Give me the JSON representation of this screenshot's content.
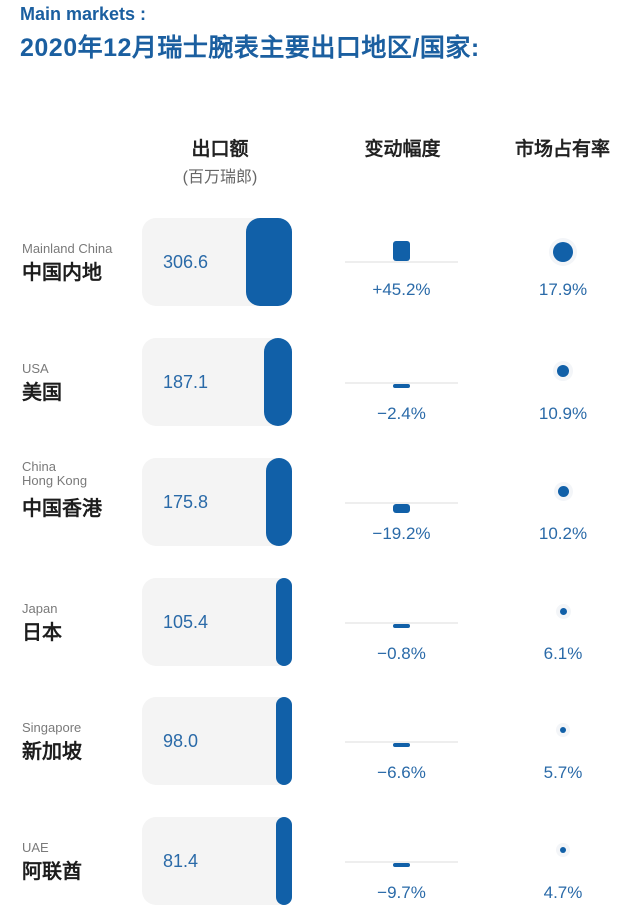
{
  "header": {
    "subtitle": "Main markets :",
    "title": "2020年12月瑞士腕表主要出口地区/国家:"
  },
  "columns": {
    "export": "出口额",
    "export_unit": "(百万瑞郎)",
    "change": "变动幅度",
    "share": "市场占有率"
  },
  "colors": {
    "accent": "#1160a8",
    "title": "#1b5fa0",
    "card_bg": "#f4f4f4",
    "value_text": "#2a6aa8"
  },
  "rows": [
    {
      "en": "Mainland China",
      "zh": "中国内地",
      "export": "306.6",
      "change": "+45.2%",
      "share": "17.9%"
    },
    {
      "en": "USA",
      "zh": "美国",
      "export": "187.1",
      "change": "−2.4%",
      "share": "10.9%"
    },
    {
      "en": "China\nHong Kong",
      "zh": "中国香港",
      "export": "175.8",
      "change": "−19.2%",
      "share": "10.2%"
    },
    {
      "en": "Japan",
      "zh": "日本",
      "export": "105.4",
      "change": "−0.8%",
      "share": "6.1%"
    },
    {
      "en": "Singapore",
      "zh": "新加坡",
      "export": "98.0",
      "change": "−6.6%",
      "share": "5.7%"
    },
    {
      "en": "UAE",
      "zh": "阿联酋",
      "export": "81.4",
      "change": "−9.7%",
      "share": "4.7%"
    }
  ],
  "chart_data": {
    "type": "table",
    "title": "2020年12月瑞士腕表主要出口地区/国家",
    "subtitle": "Main markets",
    "categories": [
      "中国内地 (Mainland China)",
      "美国 (USA)",
      "中国香港 (China Hong Kong)",
      "日本 (Japan)",
      "新加坡 (Singapore)",
      "阿联酋 (UAE)"
    ],
    "series": [
      {
        "name": "出口额 (百万瑞郎)",
        "values": [
          306.6,
          187.1,
          175.8,
          105.4,
          98.0,
          81.4
        ]
      },
      {
        "name": "变动幅度 (%)",
        "values": [
          45.2,
          -2.4,
          -19.2,
          -0.8,
          -6.6,
          -9.7
        ]
      },
      {
        "name": "市场占有率 (%)",
        "values": [
          17.9,
          10.9,
          10.2,
          6.1,
          5.7,
          4.7
        ]
      }
    ]
  }
}
